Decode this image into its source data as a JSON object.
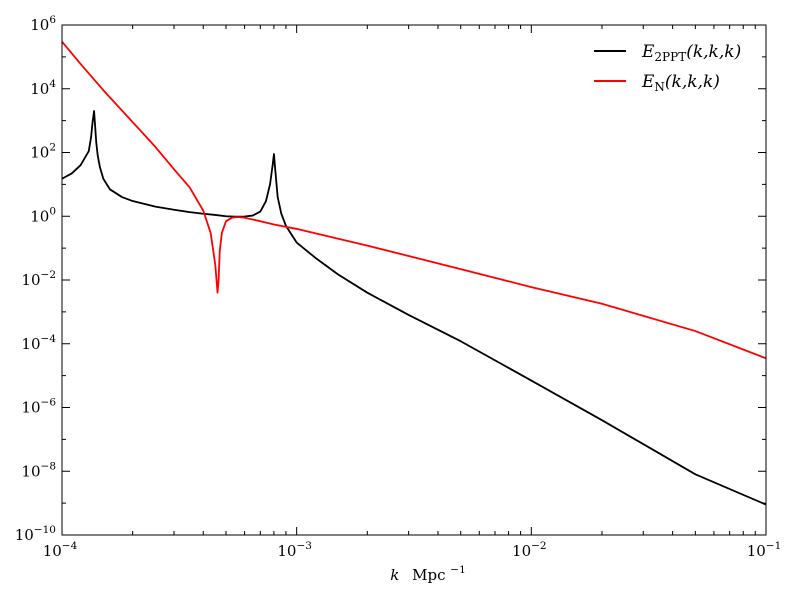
{
  "chart_data": {
    "type": "line",
    "title": "",
    "xlabel": {
      "var": "k",
      "unit": "Mpc",
      "unit_exp": "−1"
    },
    "ylabel": "",
    "xscale": "log",
    "yscale": "log",
    "xlim": [
      0.0001,
      0.1
    ],
    "ylim": [
      1e-10,
      1000000.0
    ],
    "grid": false,
    "legend_position": "top-right",
    "x_ticks": [
      {
        "value": 0.0001,
        "base": "10",
        "exp": "−4"
      },
      {
        "value": 0.001,
        "base": "10",
        "exp": "−3"
      },
      {
        "value": 0.01,
        "base": "10",
        "exp": "−2"
      },
      {
        "value": 0.1,
        "base": "10",
        "exp": "−1"
      }
    ],
    "y_ticks": [
      {
        "value": 1e-10,
        "base": "10",
        "exp": "−10"
      },
      {
        "value": 1e-08,
        "base": "10",
        "exp": "−8"
      },
      {
        "value": 1e-06,
        "base": "10",
        "exp": "−6"
      },
      {
        "value": 0.0001,
        "base": "10",
        "exp": "−4"
      },
      {
        "value": 0.01,
        "base": "10",
        "exp": "−2"
      },
      {
        "value": 1,
        "base": "10",
        "exp": "0"
      },
      {
        "value": 100,
        "base": "10",
        "exp": "2"
      },
      {
        "value": 10000,
        "base": "10",
        "exp": "4"
      },
      {
        "value": 1000000.0,
        "base": "10",
        "exp": "6"
      }
    ],
    "series": [
      {
        "name": "E_2PPT(k,k,k)",
        "legend": {
          "main": "E",
          "sub": "2PPT",
          "args": "(k,k,k)"
        },
        "color": "#000000",
        "x": [
          0.0001,
          0.00011,
          0.00012,
          0.00013,
          0.000133,
          0.000135,
          0.000137,
          0.00014,
          0.000142,
          0.000145,
          0.00015,
          0.00016,
          0.00018,
          0.0002,
          0.00025,
          0.0003,
          0.00035,
          0.0004,
          0.00045,
          0.0005,
          0.00055,
          0.0006,
          0.00065,
          0.0007,
          0.00074,
          0.00077,
          0.00079,
          0.0008,
          0.00081,
          0.00083,
          0.00086,
          0.0009,
          0.001,
          0.0012,
          0.0015,
          0.002,
          0.003,
          0.005,
          0.01,
          0.02,
          0.05,
          0.1
        ],
        "y": [
          15,
          22,
          40,
          110,
          300,
          900,
          2000,
          200,
          80,
          35,
          15,
          7,
          4,
          3,
          2,
          1.6,
          1.35,
          1.2,
          1.1,
          1.0,
          0.97,
          0.98,
          1.05,
          1.4,
          3,
          10,
          40,
          90,
          30,
          4,
          1.2,
          0.5,
          0.15,
          0.05,
          0.015,
          0.004,
          0.0008,
          0.00012,
          7e-06,
          4e-07,
          8e-09,
          9e-10
        ]
      },
      {
        "name": "E_N(k,k,k)",
        "legend": {
          "main": "E",
          "sub": "N",
          "args": "(k,k,k)"
        },
        "color": "#ff0000",
        "x": [
          0.0001,
          0.00012,
          0.00015,
          0.0002,
          0.00025,
          0.0003,
          0.00035,
          0.0004,
          0.00043,
          0.00045,
          0.00046,
          0.000465,
          0.00047,
          0.00048,
          0.0005,
          0.00053,
          0.00056,
          0.0006,
          0.0007,
          0.0008,
          0.001,
          0.002,
          0.005,
          0.01,
          0.02,
          0.05,
          0.1
        ],
        "y": [
          300000,
          60000,
          9000,
          900,
          150,
          30,
          8,
          1.5,
          0.3,
          0.03,
          0.004,
          0.01,
          0.08,
          0.3,
          0.7,
          0.9,
          0.95,
          0.9,
          0.7,
          0.55,
          0.4,
          0.12,
          0.022,
          0.006,
          0.0018,
          0.00025,
          3.5e-05
        ]
      }
    ]
  }
}
